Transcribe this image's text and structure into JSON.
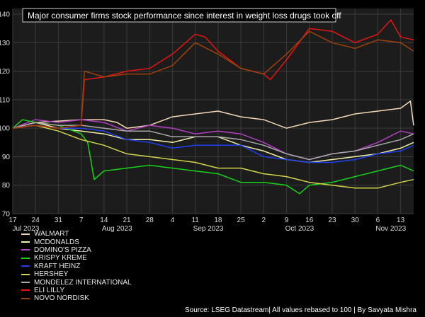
{
  "source_note": "Source: LSEG Datastream| All values rebased to 100 | By Savyata Mishra",
  "chart_data": {
    "type": "line",
    "title": "Major consumer firms stock performance since interest in weight loss drugs took off",
    "xlabel": "",
    "ylabel": "",
    "ylim": [
      70,
      142
    ],
    "yticks": [
      70,
      80,
      90,
      100,
      110,
      120,
      130,
      140
    ],
    "grid": true,
    "legend_position": "bottom-left",
    "x_start": "2023-07-17",
    "x_end": "2023-11-17",
    "xtick_labels": [
      {
        "date": "2023-07-17",
        "label": "17"
      },
      {
        "date": "2023-07-24",
        "label": "24"
      },
      {
        "date": "2023-07-31",
        "label": "31"
      },
      {
        "date": "2023-08-07",
        "label": "7"
      },
      {
        "date": "2023-08-14",
        "label": "14"
      },
      {
        "date": "2023-08-21",
        "label": "21"
      },
      {
        "date": "2023-08-28",
        "label": "28"
      },
      {
        "date": "2023-09-04",
        "label": "4"
      },
      {
        "date": "2023-09-11",
        "label": "11"
      },
      {
        "date": "2023-09-18",
        "label": "18"
      },
      {
        "date": "2023-09-25",
        "label": "25"
      },
      {
        "date": "2023-10-02",
        "label": "2"
      },
      {
        "date": "2023-10-09",
        "label": "9"
      },
      {
        "date": "2023-10-16",
        "label": "16"
      },
      {
        "date": "2023-10-23",
        "label": "23"
      },
      {
        "date": "2023-10-30",
        "label": "30"
      },
      {
        "date": "2023-11-06",
        "label": "6"
      },
      {
        "date": "2023-11-13",
        "label": "13"
      }
    ],
    "month_labels": [
      {
        "date": "2023-07-21",
        "label": "Jul 2023"
      },
      {
        "date": "2023-08-18",
        "label": "Aug 2023"
      },
      {
        "date": "2023-09-15",
        "label": "Sep 2023"
      },
      {
        "date": "2023-10-13",
        "label": "Oct 2023"
      },
      {
        "date": "2023-11-10",
        "label": "Nov 2023"
      }
    ],
    "series": [
      {
        "name": "WALMART",
        "color": "#f5d9b5",
        "points": [
          [
            "2023-07-17",
            100
          ],
          [
            "2023-07-24",
            102
          ],
          [
            "2023-07-31",
            102.5
          ],
          [
            "2023-08-07",
            103
          ],
          [
            "2023-08-14",
            103
          ],
          [
            "2023-08-18",
            102
          ],
          [
            "2023-08-21",
            100
          ],
          [
            "2023-08-28",
            101
          ],
          [
            "2023-09-04",
            104
          ],
          [
            "2023-09-11",
            105
          ],
          [
            "2023-09-18",
            106
          ],
          [
            "2023-09-25",
            104
          ],
          [
            "2023-10-02",
            103
          ],
          [
            "2023-10-09",
            100
          ],
          [
            "2023-10-16",
            102
          ],
          [
            "2023-10-23",
            103
          ],
          [
            "2023-10-30",
            105
          ],
          [
            "2023-11-06",
            106
          ],
          [
            "2023-11-13",
            107
          ],
          [
            "2023-11-16",
            109.5
          ],
          [
            "2023-11-17",
            101
          ]
        ]
      },
      {
        "name": "MCDONALDS",
        "color": "#f2f0a8",
        "points": [
          [
            "2023-07-17",
            100
          ],
          [
            "2023-07-24",
            102
          ],
          [
            "2023-07-31",
            100
          ],
          [
            "2023-08-07",
            99
          ],
          [
            "2023-08-14",
            98
          ],
          [
            "2023-08-21",
            96
          ],
          [
            "2023-08-28",
            96
          ],
          [
            "2023-09-04",
            95
          ],
          [
            "2023-09-11",
            97
          ],
          [
            "2023-09-18",
            97
          ],
          [
            "2023-09-25",
            94
          ],
          [
            "2023-10-02",
            92
          ],
          [
            "2023-10-09",
            89
          ],
          [
            "2023-10-16",
            88
          ],
          [
            "2023-10-23",
            89
          ],
          [
            "2023-10-30",
            90
          ],
          [
            "2023-11-06",
            91
          ],
          [
            "2023-11-13",
            93
          ],
          [
            "2023-11-17",
            95
          ]
        ]
      },
      {
        "name": "DOMINO'S PIZZA",
        "color": "#b03fc4",
        "points": [
          [
            "2023-07-17",
            100
          ],
          [
            "2023-07-24",
            103
          ],
          [
            "2023-07-31",
            102
          ],
          [
            "2023-08-07",
            103
          ],
          [
            "2023-08-14",
            102
          ],
          [
            "2023-08-21",
            99
          ],
          [
            "2023-08-28",
            101
          ],
          [
            "2023-09-04",
            100
          ],
          [
            "2023-09-11",
            98
          ],
          [
            "2023-09-18",
            99
          ],
          [
            "2023-09-25",
            98
          ],
          [
            "2023-10-02",
            95
          ],
          [
            "2023-10-09",
            91
          ],
          [
            "2023-10-16",
            89
          ],
          [
            "2023-10-23",
            91
          ],
          [
            "2023-10-30",
            92
          ],
          [
            "2023-11-06",
            95
          ],
          [
            "2023-11-13",
            99
          ],
          [
            "2023-11-17",
            98
          ]
        ]
      },
      {
        "name": "KRISPY KREME",
        "color": "#19d319",
        "points": [
          [
            "2023-07-17",
            100
          ],
          [
            "2023-07-20",
            103
          ],
          [
            "2023-07-24",
            102
          ],
          [
            "2023-07-31",
            101
          ],
          [
            "2023-08-07",
            98
          ],
          [
            "2023-08-09",
            95
          ],
          [
            "2023-08-11",
            82
          ],
          [
            "2023-08-14",
            85
          ],
          [
            "2023-08-21",
            86
          ],
          [
            "2023-08-28",
            87
          ],
          [
            "2023-09-04",
            86
          ],
          [
            "2023-09-11",
            85
          ],
          [
            "2023-09-18",
            84
          ],
          [
            "2023-09-25",
            81
          ],
          [
            "2023-10-02",
            81
          ],
          [
            "2023-10-09",
            80
          ],
          [
            "2023-10-13",
            77
          ],
          [
            "2023-10-16",
            80
          ],
          [
            "2023-10-23",
            81
          ],
          [
            "2023-10-30",
            83
          ],
          [
            "2023-11-06",
            85
          ],
          [
            "2023-11-13",
            87
          ],
          [
            "2023-11-17",
            85
          ]
        ]
      },
      {
        "name": "KRAFT HEINZ",
        "color": "#1f3ff0",
        "points": [
          [
            "2023-07-17",
            100
          ],
          [
            "2023-07-24",
            101
          ],
          [
            "2023-07-31",
            100
          ],
          [
            "2023-08-07",
            100
          ],
          [
            "2023-08-14",
            99
          ],
          [
            "2023-08-21",
            96
          ],
          [
            "2023-08-28",
            95
          ],
          [
            "2023-09-04",
            93
          ],
          [
            "2023-09-11",
            94
          ],
          [
            "2023-09-18",
            94
          ],
          [
            "2023-09-25",
            94
          ],
          [
            "2023-10-02",
            90
          ],
          [
            "2023-10-09",
            89
          ],
          [
            "2023-10-16",
            88
          ],
          [
            "2023-10-23",
            88
          ],
          [
            "2023-10-30",
            89
          ],
          [
            "2023-11-06",
            91
          ],
          [
            "2023-11-13",
            92
          ],
          [
            "2023-11-17",
            94
          ]
        ]
      },
      {
        "name": "HERSHEY",
        "color": "#d4d44a",
        "points": [
          [
            "2023-07-17",
            100
          ],
          [
            "2023-07-24",
            101
          ],
          [
            "2023-07-31",
            99
          ],
          [
            "2023-08-07",
            96
          ],
          [
            "2023-08-14",
            94
          ],
          [
            "2023-08-21",
            91
          ],
          [
            "2023-08-28",
            90
          ],
          [
            "2023-09-04",
            89
          ],
          [
            "2023-09-11",
            88
          ],
          [
            "2023-09-18",
            86
          ],
          [
            "2023-09-25",
            86
          ],
          [
            "2023-10-02",
            84
          ],
          [
            "2023-10-09",
            83
          ],
          [
            "2023-10-16",
            81
          ],
          [
            "2023-10-23",
            80
          ],
          [
            "2023-10-30",
            79
          ],
          [
            "2023-11-06",
            79
          ],
          [
            "2023-11-13",
            81
          ],
          [
            "2023-11-17",
            82
          ]
        ]
      },
      {
        "name": "MONDELEZ INTERNATIONAL",
        "color": "#a9a9a9",
        "points": [
          [
            "2023-07-17",
            100
          ],
          [
            "2023-07-24",
            102
          ],
          [
            "2023-07-31",
            101
          ],
          [
            "2023-08-07",
            101
          ],
          [
            "2023-08-14",
            100
          ],
          [
            "2023-08-21",
            99
          ],
          [
            "2023-08-28",
            99
          ],
          [
            "2023-09-04",
            97
          ],
          [
            "2023-09-11",
            97
          ],
          [
            "2023-09-18",
            97
          ],
          [
            "2023-09-25",
            96
          ],
          [
            "2023-10-02",
            94
          ],
          [
            "2023-10-09",
            91
          ],
          [
            "2023-10-16",
            89
          ],
          [
            "2023-10-23",
            91
          ],
          [
            "2023-10-30",
            92
          ],
          [
            "2023-11-06",
            94
          ],
          [
            "2023-11-13",
            96
          ],
          [
            "2023-11-17",
            98
          ]
        ]
      },
      {
        "name": "ELI LILLY",
        "color": "#e81414",
        "points": [
          [
            "2023-07-17",
            100
          ],
          [
            "2023-07-24",
            101
          ],
          [
            "2023-07-31",
            100
          ],
          [
            "2023-08-07",
            101
          ],
          [
            "2023-08-08",
            117
          ],
          [
            "2023-08-14",
            118
          ],
          [
            "2023-08-21",
            120
          ],
          [
            "2023-08-28",
            121
          ],
          [
            "2023-09-04",
            126
          ],
          [
            "2023-09-11",
            133
          ],
          [
            "2023-09-14",
            132
          ],
          [
            "2023-09-18",
            127
          ],
          [
            "2023-09-25",
            121
          ],
          [
            "2023-10-02",
            119
          ],
          [
            "2023-10-04",
            117
          ],
          [
            "2023-10-09",
            124
          ],
          [
            "2023-10-16",
            135
          ],
          [
            "2023-10-23",
            134
          ],
          [
            "2023-10-30",
            130
          ],
          [
            "2023-11-06",
            133
          ],
          [
            "2023-11-10",
            138
          ],
          [
            "2023-11-13",
            132
          ],
          [
            "2023-11-17",
            131
          ]
        ]
      },
      {
        "name": "NOVO NORDISK",
        "color": "#a0400c",
        "points": [
          [
            "2023-07-17",
            100
          ],
          [
            "2023-07-24",
            101
          ],
          [
            "2023-07-31",
            100
          ],
          [
            "2023-08-07",
            101
          ],
          [
            "2023-08-08",
            120
          ],
          [
            "2023-08-14",
            118
          ],
          [
            "2023-08-21",
            119
          ],
          [
            "2023-08-28",
            119
          ],
          [
            "2023-09-04",
            122
          ],
          [
            "2023-09-11",
            130
          ],
          [
            "2023-09-18",
            126
          ],
          [
            "2023-09-25",
            121
          ],
          [
            "2023-10-02",
            119
          ],
          [
            "2023-10-09",
            126
          ],
          [
            "2023-10-16",
            134
          ],
          [
            "2023-10-23",
            130
          ],
          [
            "2023-10-30",
            128
          ],
          [
            "2023-11-06",
            131
          ],
          [
            "2023-11-13",
            130
          ],
          [
            "2023-11-17",
            127
          ]
        ]
      }
    ]
  }
}
